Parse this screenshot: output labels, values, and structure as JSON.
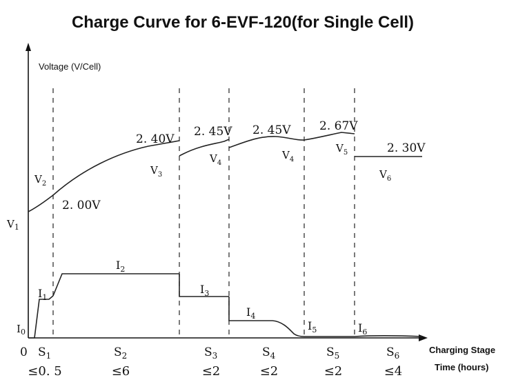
{
  "chart_data": {
    "type": "line",
    "title": "Charge Curve for 6-EVF-120(for Single Cell)",
    "ylabel": "Voltage (V/Cell)",
    "xlabel": "Charging Stage",
    "time_label": "Time (hours)",
    "origin_label": "0",
    "y_axis_markers": {
      "v1": "V",
      "v1_sub": "1",
      "i0": "I",
      "i0_sub": "0"
    },
    "stages": [
      {
        "label": "S",
        "sub": "1",
        "time": "≤0. 5"
      },
      {
        "label": "S",
        "sub": "2",
        "time": "≤6"
      },
      {
        "label": "S",
        "sub": "3",
        "time": "≤2"
      },
      {
        "label": "S",
        "sub": "4",
        "time": "≤2"
      },
      {
        "label": "S",
        "sub": "5",
        "time": "≤2"
      },
      {
        "label": "S",
        "sub": "6",
        "time": "≤4"
      }
    ],
    "voltage_annotations": [
      {
        "text": "2. 00V"
      },
      {
        "text": "2. 40V"
      },
      {
        "text": "2. 45V"
      },
      {
        "text": "2. 45V"
      },
      {
        "text": "2. 67V"
      },
      {
        "text": "2. 30V"
      }
    ],
    "voltage_segment_labels": [
      {
        "label": "V",
        "sub": "2"
      },
      {
        "label": "V",
        "sub": "3"
      },
      {
        "label": "V",
        "sub": "4"
      },
      {
        "label": "V",
        "sub": "4"
      },
      {
        "label": "V",
        "sub": "5"
      },
      {
        "label": "V",
        "sub": "6"
      }
    ],
    "current_labels": [
      {
        "label": "I",
        "sub": "1"
      },
      {
        "label": "I",
        "sub": "2"
      },
      {
        "label": "I",
        "sub": "3"
      },
      {
        "label": "I",
        "sub": "4"
      },
      {
        "label": "I",
        "sub": "5"
      },
      {
        "label": "I",
        "sub": "6"
      }
    ]
  }
}
